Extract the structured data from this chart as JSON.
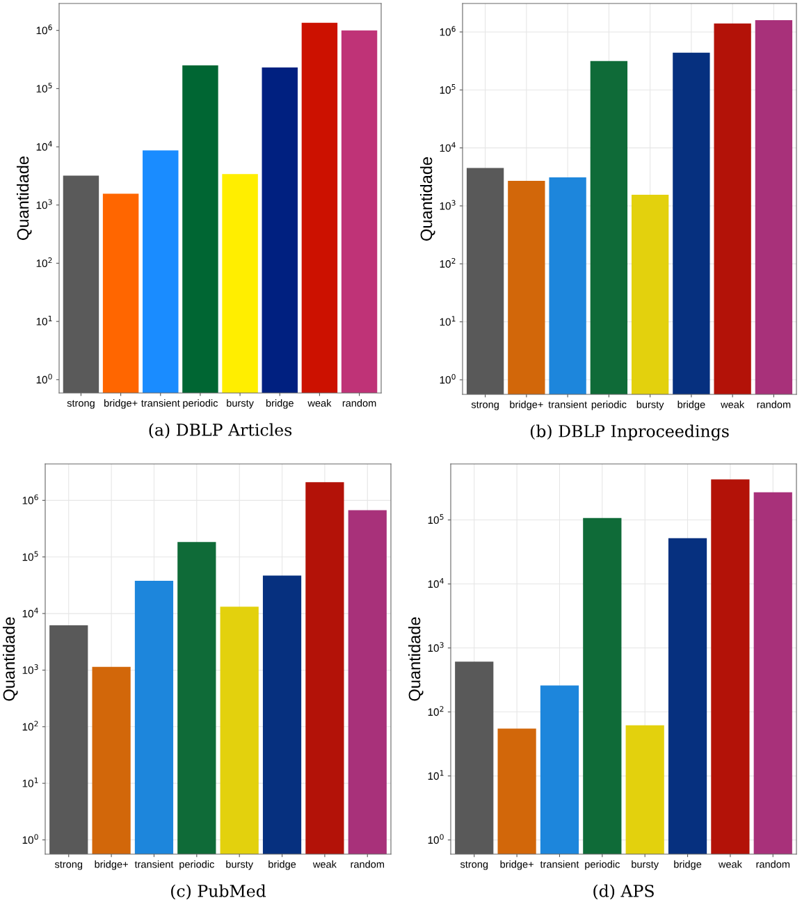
{
  "chart_data": [
    {
      "type": "bar",
      "ylabel": "Quantidade",
      "categories": [
        "strong",
        "bridge+",
        "transient",
        "periodic",
        "bursty",
        "bridge",
        "weak",
        "random"
      ],
      "values": [
        3200,
        1560,
        8700,
        250000,
        3400,
        230000,
        1350000,
        1000000
      ],
      "colors": [
        "#5a5a5a",
        "#ff6600",
        "#1a8cff",
        "#006633",
        "#ffee00",
        "#002080",
        "#cc1100",
        "#bf3377"
      ],
      "log": true,
      "ylim": [
        0.59,
        2900000
      ],
      "yticks": [
        {
          "value": 1,
          "label": "10$^{0}$"
        },
        {
          "value": 10,
          "label": "10$^{1}$"
        },
        {
          "value": 100,
          "label": "10$^{2}$"
        },
        {
          "value": 1000,
          "label": "10$^{3}$"
        },
        {
          "value": 10000,
          "label": "10$^{4}$"
        },
        {
          "value": 100000,
          "label": "10$^{5}$"
        },
        {
          "value": 1000000,
          "label": "10$^{6}$"
        }
      ],
      "grid": false,
      "annotations": [
        "(a) DBLP Articles"
      ]
    },
    {
      "type": "bar",
      "ylabel": "Quantidade",
      "categories": [
        "strong",
        "bridge+",
        "transient",
        "periodic",
        "bursty",
        "bridge",
        "weak",
        "random"
      ],
      "values": [
        4500,
        2700,
        3100,
        316000,
        1560,
        440000,
        1400000,
        1600000
      ],
      "colors": [
        "#595959",
        "#d2670a",
        "#1d86dc",
        "#0f6b38",
        "#e3d10d",
        "#06307f",
        "#b31208",
        "#a8317a"
      ],
      "log": true,
      "ylim": [
        0.56,
        3100000
      ],
      "yticks": [
        {
          "value": 1,
          "label": "10$^{0}$"
        },
        {
          "value": 10,
          "label": "10$^{1}$"
        },
        {
          "value": 100,
          "label": "10$^{2}$"
        },
        {
          "value": 1000,
          "label": "10$^{3}$"
        },
        {
          "value": 10000,
          "label": "10$^{4}$"
        },
        {
          "value": 100000,
          "label": "10$^{5}$"
        },
        {
          "value": 1000000,
          "label": "10$^{6}$"
        }
      ],
      "grid": true,
      "annotations": [
        "(b) DBLP Inproceedings"
      ]
    },
    {
      "type": "bar",
      "ylabel": "Quantidade",
      "categories": [
        "strong",
        "bridge+",
        "transient",
        "periodic",
        "bursty",
        "bridge",
        "weak",
        "random"
      ],
      "values": [
        6200,
        1140,
        38000,
        183000,
        13200,
        47000,
        2100000,
        670000
      ],
      "colors": [
        "#595959",
        "#d2670a",
        "#1d86dc",
        "#0f6b38",
        "#e3d10d",
        "#06307f",
        "#b31208",
        "#a8317a"
      ],
      "log": true,
      "ylim": [
        0.56,
        4400000
      ],
      "yticks": [
        {
          "value": 1,
          "label": "10$^{0}$"
        },
        {
          "value": 10,
          "label": "10$^{1}$"
        },
        {
          "value": 100,
          "label": "10$^{2}$"
        },
        {
          "value": 1000,
          "label": "10$^{3}$"
        },
        {
          "value": 10000,
          "label": "10$^{4}$"
        },
        {
          "value": 100000,
          "label": "10$^{5}$"
        },
        {
          "value": 1000000,
          "label": "10$^{6}$"
        }
      ],
      "grid": true,
      "annotations": [
        "(c) PubMed"
      ]
    },
    {
      "type": "bar",
      "ylabel": "Quantidade",
      "categories": [
        "strong",
        "bridge+",
        "transient",
        "periodic",
        "bursty",
        "bridge",
        "weak",
        "random"
      ],
      "values": [
        610,
        55,
        260,
        107000,
        62,
        52000,
        430000,
        270000
      ],
      "colors": [
        "#595959",
        "#d2670a",
        "#1d86dc",
        "#0f6b38",
        "#e3d10d",
        "#06307f",
        "#b31208",
        "#a8317a"
      ],
      "log": true,
      "ylim": [
        0.6,
        750000
      ],
      "yticks": [
        {
          "value": 1,
          "label": "10$^{0}$"
        },
        {
          "value": 10,
          "label": "10$^{1}$"
        },
        {
          "value": 100,
          "label": "10$^{2}$"
        },
        {
          "value": 1000,
          "label": "10$^{3}$"
        },
        {
          "value": 10000,
          "label": "10$^{4}$"
        },
        {
          "value": 100000,
          "label": "10$^{5}$"
        }
      ],
      "grid": true,
      "annotations": [
        "(d) APS"
      ]
    }
  ]
}
